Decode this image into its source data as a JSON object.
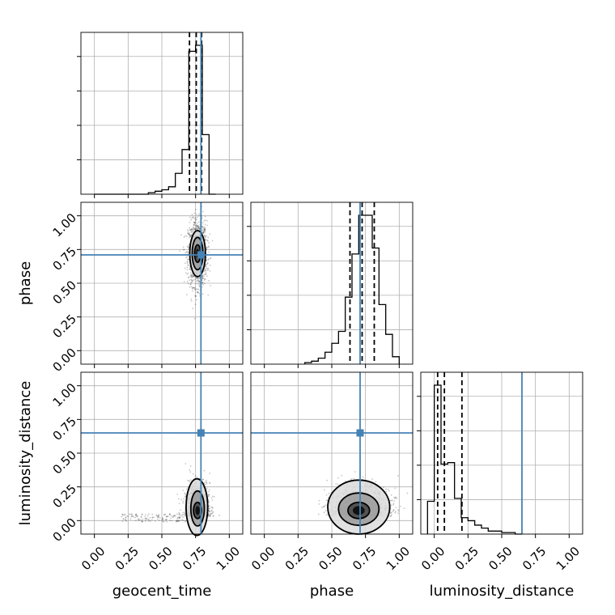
{
  "chart_data": {
    "type": "corner",
    "parameters": [
      "geocent_time",
      "phase",
      "luminosity_distance"
    ],
    "axis_range": [
      -0.1,
      1.1
    ],
    "tick_values": [
      0.0,
      0.25,
      0.5,
      0.75,
      1.0
    ],
    "tick_labels": [
      "0.00",
      "0.25",
      "0.50",
      "0.75",
      "1.00"
    ],
    "grid": true,
    "truth_color": "#4682b4",
    "truths": {
      "geocent_time": 0.79,
      "phase": 0.71,
      "luminosity_distance": 0.65
    },
    "histograms": [
      {
        "parameter": "geocent_time",
        "bin_edges": [
          0.0,
          0.05,
          0.1,
          0.15,
          0.2,
          0.25,
          0.3,
          0.35,
          0.4,
          0.45,
          0.5,
          0.55,
          0.6,
          0.65,
          0.7,
          0.75,
          0.8,
          0.85,
          0.9
        ],
        "counts": [
          0,
          0,
          0,
          0,
          0,
          0,
          0,
          0,
          1,
          2,
          3,
          5,
          14,
          30,
          96,
          100,
          40,
          0
        ],
        "quantiles": [
          0.705,
          0.755,
          0.795
        ]
      },
      {
        "parameter": "phase",
        "bin_edges": [
          0.3,
          0.35,
          0.4,
          0.45,
          0.5,
          0.55,
          0.6,
          0.65,
          0.7,
          0.75,
          0.8,
          0.85,
          0.9,
          0.95,
          1.0
        ],
        "counts": [
          1,
          2,
          4,
          8,
          14,
          22,
          45,
          74,
          100,
          100,
          78,
          40,
          20,
          5
        ],
        "quantiles": [
          0.635,
          0.725,
          0.815
        ]
      },
      {
        "parameter": "luminosity_distance",
        "bin_edges": [
          -0.05,
          0.0,
          0.05,
          0.1,
          0.15,
          0.2,
          0.25,
          0.3,
          0.35,
          0.4,
          0.45,
          0.5,
          0.55,
          0.6,
          0.65
        ],
        "counts": [
          22,
          100,
          47,
          48,
          24,
          11,
          9,
          6,
          4,
          2,
          2,
          1,
          1,
          0
        ],
        "quantiles": [
          0.025,
          0.075,
          0.205
        ]
      }
    ],
    "panels_2d": [
      {
        "x": "geocent_time",
        "y": "phase",
        "center": [
          0.765,
          0.72
        ],
        "spread": [
          0.035,
          0.12
        ],
        "contours": [
          {
            "cx": 0.765,
            "cy": 0.72,
            "rx": 0.058,
            "ry": 0.17
          },
          {
            "cx": 0.765,
            "cy": 0.72,
            "rx": 0.04,
            "ry": 0.12
          },
          {
            "cx": 0.765,
            "cy": 0.72,
            "rx": 0.022,
            "ry": 0.065
          }
        ]
      },
      {
        "x": "geocent_time",
        "y": "luminosity_distance",
        "center": [
          0.765,
          0.07
        ],
        "spread": [
          0.045,
          0.11
        ],
        "contours": [
          {
            "cx": 0.76,
            "cy": 0.1,
            "rx": 0.08,
            "ry": 0.21
          },
          {
            "cx": 0.765,
            "cy": 0.09,
            "rx": 0.05,
            "ry": 0.13
          },
          {
            "cx": 0.765,
            "cy": 0.075,
            "rx": 0.03,
            "ry": 0.06
          }
        ]
      },
      {
        "x": "phase",
        "y": "luminosity_distance",
        "center": [
          0.71,
          0.07
        ],
        "spread": [
          0.11,
          0.1
        ],
        "contours": [
          {
            "cx": 0.7,
            "cy": 0.1,
            "rx": 0.23,
            "ry": 0.2
          },
          {
            "cx": 0.7,
            "cy": 0.085,
            "rx": 0.15,
            "ry": 0.12
          },
          {
            "cx": 0.7,
            "cy": 0.075,
            "rx": 0.08,
            "ry": 0.06
          }
        ]
      }
    ]
  }
}
